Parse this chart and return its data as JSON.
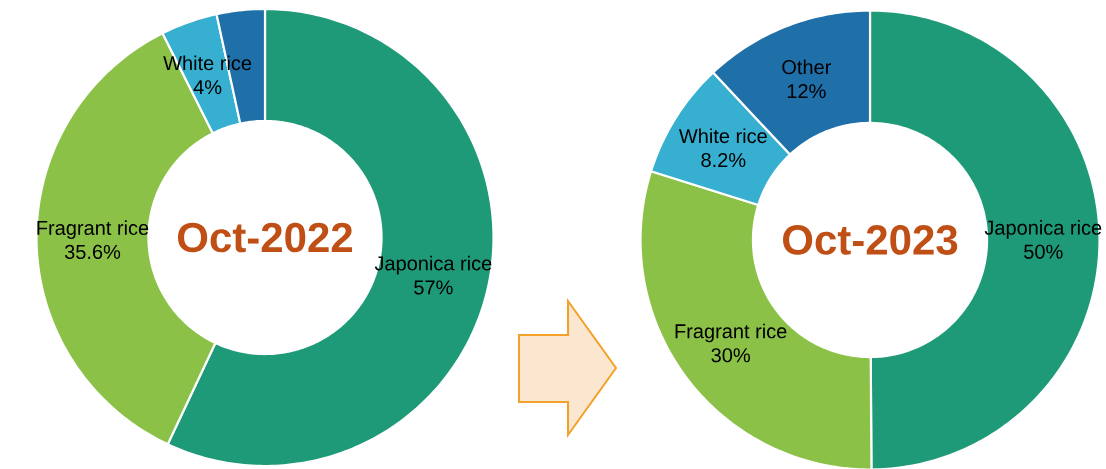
{
  "chart_data": [
    {
      "type": "donut",
      "title": "Oct-2022",
      "categories": [
        "Japonica rice",
        "Fragrant rice",
        "White rice",
        null
      ],
      "values": [
        57,
        35.6,
        4,
        3.4
      ],
      "value_labels": [
        "57%",
        "35.6%",
        "4%",
        null
      ],
      "colors": [
        "#1e9a78",
        "#8bc147",
        "#37afd0",
        "#1f6fa9"
      ]
    },
    {
      "type": "donut",
      "title": "Oct-2023",
      "categories": [
        "Japonica rice",
        "Fragrant rice",
        "White rice",
        "Other"
      ],
      "values": [
        50,
        30,
        8.2,
        12
      ],
      "value_labels": [
        "50%",
        "30%",
        "8.2%",
        "12%"
      ],
      "colors": [
        "#1e9a78",
        "#8bc147",
        "#37afd0",
        "#1f6fa9"
      ]
    }
  ]
}
